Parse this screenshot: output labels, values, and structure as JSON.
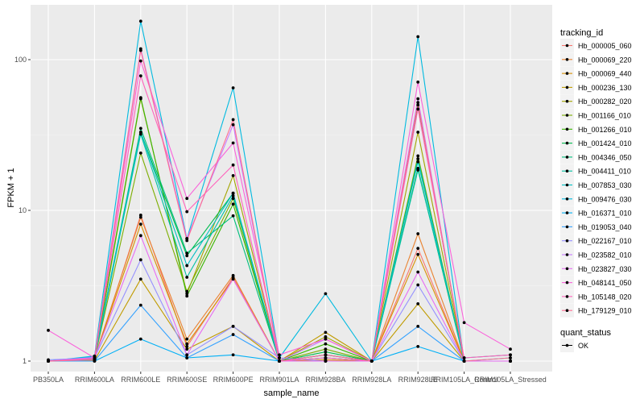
{
  "chart_data": {
    "type": "line",
    "xlabel": "sample_name",
    "ylabel": "FPKM + 1",
    "y_scale": "log10",
    "y_ticks": [
      1,
      10,
      100
    ],
    "y_tick_labels": [
      "1",
      "10",
      "100"
    ],
    "grid": true,
    "legend_position": "right",
    "categories": [
      "PB350LA",
      "RRIM600LA",
      "RRIM600LE",
      "RRIM600SE",
      "RRIM600PE",
      "RRIM901LA",
      "RRIM928BA",
      "RRIM928LA",
      "RRIM928LE",
      "RRIM105LA_Control",
      "RRIM105LA_Stressed"
    ],
    "legend_title": "tracking_id",
    "shape_legend": {
      "title": "quant_status",
      "items": [
        "OK"
      ]
    },
    "series": [
      {
        "name": "Hb_000005_060",
        "color": "#F8766D",
        "values": [
          1.0,
          1.02,
          9.3,
          1.25,
          3.6,
          1.0,
          1.1,
          1.0,
          5.6,
          1.0,
          1.0
        ]
      },
      {
        "name": "Hb_000069_220",
        "color": "#EA8331",
        "values": [
          1.0,
          1.05,
          9.0,
          1.4,
          3.7,
          1.0,
          1.05,
          1.0,
          7.0,
          1.0,
          1.0
        ]
      },
      {
        "name": "Hb_000069_440",
        "color": "#D89000",
        "values": [
          1.0,
          1.04,
          8.1,
          1.3,
          3.5,
          1.0,
          1.02,
          1.0,
          5.1,
          1.0,
          1.0
        ]
      },
      {
        "name": "Hb_000236_130",
        "color": "#C09B00",
        "values": [
          1.0,
          1.01,
          3.5,
          1.2,
          1.7,
          1.0,
          1.55,
          1.0,
          2.4,
          1.0,
          1.0
        ]
      },
      {
        "name": "Hb_000282_020",
        "color": "#A3A500",
        "values": [
          1.0,
          1.02,
          55.0,
          2.8,
          17.0,
          1.0,
          1.45,
          1.0,
          33.0,
          1.0,
          1.0
        ]
      },
      {
        "name": "Hb_001166_010",
        "color": "#7CAE00",
        "values": [
          1.0,
          1.03,
          24.0,
          2.9,
          12.0,
          1.0,
          1.2,
          1.0,
          23.0,
          1.0,
          1.0
        ]
      },
      {
        "name": "Hb_001266_010",
        "color": "#39B600",
        "values": [
          1.0,
          1.06,
          56.0,
          2.7,
          11.0,
          1.0,
          1.3,
          1.0,
          50.0,
          1.0,
          1.0
        ]
      },
      {
        "name": "Hb_001424_010",
        "color": "#00BB4E",
        "values": [
          1.0,
          1.05,
          33.0,
          5.0,
          13.0,
          1.0,
          1.15,
          1.0,
          19.0,
          1.0,
          1.0
        ]
      },
      {
        "name": "Hb_004346_050",
        "color": "#00BF7D",
        "values": [
          1.0,
          1.04,
          35.0,
          5.2,
          9.2,
          1.0,
          1.1,
          1.0,
          22.0,
          1.0,
          1.0
        ]
      },
      {
        "name": "Hb_004411_010",
        "color": "#00C1A3",
        "values": [
          1.0,
          1.03,
          32.0,
          3.6,
          12.5,
          1.0,
          1.05,
          1.0,
          18.5,
          1.05,
          1.1
        ]
      },
      {
        "name": "Hb_007853_030",
        "color": "#00BFC4",
        "values": [
          1.0,
          1.07,
          33.0,
          4.3,
          13.0,
          1.0,
          1.1,
          1.0,
          21.0,
          1.0,
          1.05
        ]
      },
      {
        "name": "Hb_009476_030",
        "color": "#00BAE0",
        "values": [
          1.0,
          1.08,
          180.0,
          6.5,
          65.0,
          1.05,
          2.8,
          1.0,
          142.0,
          1.0,
          1.0
        ]
      },
      {
        "name": "Hb_016371_010",
        "color": "#00B0F6",
        "values": [
          1.0,
          1.0,
          1.4,
          1.05,
          1.1,
          1.0,
          1.0,
          1.0,
          1.25,
          1.0,
          1.0
        ]
      },
      {
        "name": "Hb_019053_040",
        "color": "#35A2FF",
        "values": [
          1.0,
          1.0,
          2.35,
          1.05,
          1.5,
          1.0,
          1.0,
          1.0,
          1.7,
          1.0,
          1.0
        ]
      },
      {
        "name": "Hb_022167_010",
        "color": "#9590FF",
        "values": [
          1.02,
          1.05,
          4.7,
          1.1,
          1.7,
          1.05,
          1.0,
          1.0,
          3.2,
          1.0,
          1.0
        ]
      },
      {
        "name": "Hb_023582_010",
        "color": "#C77CFF",
        "values": [
          1.0,
          1.06,
          118.0,
          6.5,
          37.0,
          1.0,
          1.4,
          1.0,
          55.0,
          1.0,
          1.0
        ]
      },
      {
        "name": "Hb_023827_030",
        "color": "#E76BF3",
        "values": [
          1.0,
          1.05,
          6.8,
          1.1,
          3.5,
          1.0,
          1.0,
          1.0,
          3.9,
          1.0,
          1.0
        ]
      },
      {
        "name": "Hb_048141_050",
        "color": "#FA62DB",
        "values": [
          1.6,
          1.05,
          98.0,
          12.0,
          28.0,
          1.1,
          1.4,
          1.0,
          71.0,
          1.8,
          1.2
        ]
      },
      {
        "name": "Hb_105148_020",
        "color": "#FF62BC",
        "values": [
          1.0,
          1.04,
          78.0,
          9.8,
          20.0,
          1.0,
          1.05,
          1.0,
          47.0,
          1.05,
          1.1
        ]
      },
      {
        "name": "Hb_179129_010",
        "color": "#FF6C91",
        "values": [
          1.0,
          1.02,
          115.0,
          6.3,
          40.0,
          1.0,
          1.1,
          1.0,
          52.0,
          1.0,
          1.05
        ]
      }
    ]
  }
}
